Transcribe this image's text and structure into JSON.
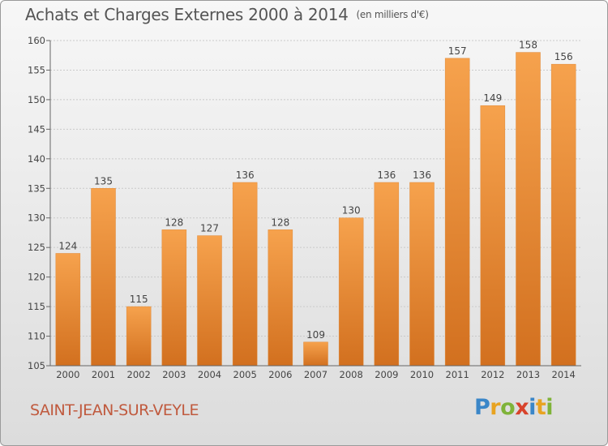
{
  "chart_data": {
    "type": "bar",
    "title": "Achats et Charges Externes 2000 à 2014",
    "unit_note": "(en milliers d'€)",
    "categories": [
      "2000",
      "2001",
      "2002",
      "2003",
      "2004",
      "2005",
      "2006",
      "2007",
      "2008",
      "2009",
      "2010",
      "2011",
      "2012",
      "2013",
      "2014"
    ],
    "values": [
      124,
      135,
      115,
      128,
      127,
      136,
      128,
      109,
      130,
      136,
      136,
      157,
      149,
      158,
      156
    ],
    "ylim": [
      105,
      160
    ],
    "yticks": [
      105,
      110,
      115,
      120,
      125,
      130,
      135,
      140,
      145,
      150,
      155,
      160
    ],
    "grid": true,
    "bar_color_light": "#f6a24d",
    "bar_color_dark": "#d2701f"
  },
  "footer": {
    "town": "SAINT-JEAN-SUR-VEYLE",
    "logo_letters": [
      "P",
      "r",
      "o",
      "x",
      "i",
      "t",
      "i"
    ]
  }
}
